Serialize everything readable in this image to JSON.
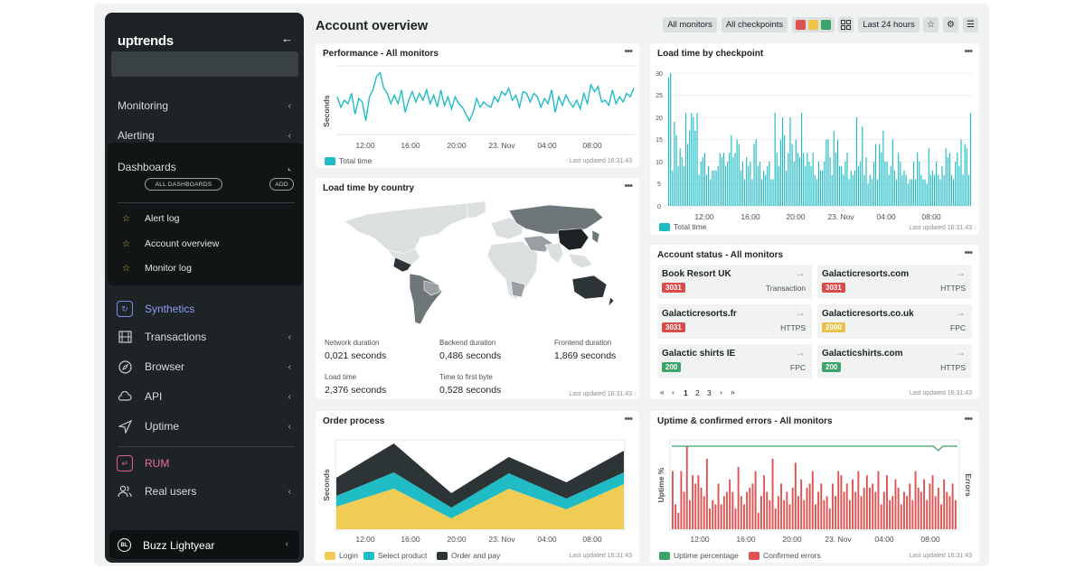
{
  "sidebar": {
    "logo": "uptrends",
    "collapse_icon": "arrow-left-icon",
    "items": [
      {
        "label": "Monitoring"
      },
      {
        "label": "Alerting"
      },
      {
        "label": "Dashboards"
      }
    ],
    "dashboards": {
      "all_label": "ALL DASHBOARDS",
      "add_label": "ADD",
      "links": [
        {
          "label": "Alert log"
        },
        {
          "label": "Account overview"
        },
        {
          "label": "Monitor log"
        }
      ]
    },
    "synthetics": {
      "label": "Synthetics",
      "color": "#7b8cf0"
    },
    "synth_items": [
      {
        "label": "Transactions",
        "icon": "film-icon"
      },
      {
        "label": "Browser",
        "icon": "compass-icon"
      },
      {
        "label": "API",
        "icon": "cloud-icon"
      },
      {
        "label": "Uptime",
        "icon": "send-icon"
      }
    ],
    "rum": {
      "label": "RUM",
      "color": "#e2608a"
    },
    "rum_items": [
      {
        "label": "Real users",
        "icon": "users-icon"
      }
    ],
    "user": {
      "initials": "BL",
      "name": "Buzz Lightyear"
    }
  },
  "header": {
    "title": "Account overview",
    "all_monitors": "All monitors",
    "all_checkpoints": "All checkpoints",
    "status_colors": [
      "#e05252",
      "#f0c34a",
      "#3aa566"
    ],
    "timeframe": "Last 24 hours"
  },
  "performance": {
    "title": "Performance - All monitors",
    "ylabel": "Seconds",
    "xticks": [
      "12:00",
      "16:00",
      "20:00",
      "23. Nov",
      "04:00",
      "08:00"
    ],
    "legend": "Total time",
    "updated": "Last updated 16:31:43"
  },
  "checkpoint": {
    "title": "Load time by checkpoint",
    "yticks": [
      "0",
      "5",
      "10",
      "15",
      "20",
      "25",
      "30"
    ],
    "xticks": [
      "12:00",
      "16:00",
      "20:00",
      "23. Nov",
      "04:00",
      "08:00"
    ],
    "legend": "Total time",
    "updated": "Last updated 16:31:43"
  },
  "country": {
    "title": "Load time by country",
    "metrics": [
      {
        "label": "Network duration",
        "value": "0,021 seconds"
      },
      {
        "label": "Backend duration",
        "value": "0,486 seconds"
      },
      {
        "label": "Frontend duration",
        "value": "1,869 seconds"
      },
      {
        "label": "Load time",
        "value": "2,376 seconds"
      },
      {
        "label": "Time to first byte",
        "value": "0,528 seconds"
      }
    ],
    "updated": "Last updated 16:31:43"
  },
  "status": {
    "title": "Account status - All monitors",
    "tiles": [
      {
        "name": "Book Resort UK",
        "code": "3031",
        "color": "#d94b4b",
        "type": "Transaction"
      },
      {
        "name": "Galacticresorts.com",
        "code": "3031",
        "color": "#d94b4b",
        "type": "HTTPS"
      },
      {
        "name": "Galacticresorts.fr",
        "code": "3031",
        "color": "#d94b4b",
        "type": "HTTPS"
      },
      {
        "name": "Galacticresorts.co.uk",
        "code": "2000",
        "color": "#e8c24a",
        "type": "FPC"
      },
      {
        "name": "Galactic shirts IE",
        "code": "200",
        "color": "#3aa566",
        "type": "FPC"
      },
      {
        "name": "Galacticshirts.com",
        "code": "200",
        "color": "#3aa566",
        "type": "HTTPS"
      }
    ],
    "pages": [
      "1",
      "2",
      "3"
    ],
    "updated": "Last updated 16:31:43"
  },
  "order": {
    "title": "Order process",
    "ylabel": "Seconds",
    "xticks": [
      "12:00",
      "16:00",
      "20:00",
      "23. Nov",
      "04:00",
      "08:00"
    ],
    "legend": [
      "Login",
      "Select product",
      "Order and pay"
    ],
    "colors": [
      "#f0cc55",
      "#1fbcc6",
      "#2d3436"
    ],
    "updated": "Last updated 16:31:43"
  },
  "uptime": {
    "title": "Uptime & confirmed errors - All monitors",
    "ylabel_left": "Uptime %",
    "ylabel_right": "Errors",
    "xticks": [
      "12:00",
      "16:00",
      "20:00",
      "23. Nov",
      "04:00",
      "08:00"
    ],
    "legend": [
      "Uptime percentage",
      "Confirmed errors"
    ],
    "colors": [
      "#3aa566",
      "#e05252"
    ],
    "updated": "Last updated 16:31:43"
  },
  "chart_data": [
    {
      "type": "line",
      "title": "Performance - All monitors",
      "ylabel": "Seconds",
      "series": [
        {
          "name": "Total time",
          "values": [
            2.2,
            1.6,
            2.0,
            1.8,
            2.4,
            1.2,
            2.1,
            1.9,
            0.8,
            2.2,
            2.6,
            3.4,
            3.6,
            2.7,
            2.4,
            1.8,
            2.3,
            1.8,
            2.6,
            1.3,
            2.0,
            2.5,
            1.9,
            2.4,
            2.0,
            2.6,
            1.8,
            2.3,
            1.6,
            2.6,
            1.7,
            2.2,
            1.5,
            2.2,
            1.8,
            1.6,
            1.2,
            0.8,
            1.3,
            2.1,
            1.6,
            1.9,
            1.7,
            1.6,
            2.2,
            1.9,
            2.5,
            2.3,
            2.7,
            2.0,
            2.3,
            1.6,
            2.5,
            2.4,
            1.9,
            2.4,
            2.2,
            1.6,
            2.1,
            1.8,
            2.6,
            1.3,
            2.2,
            1.7,
            2.3,
            1.9,
            1.6,
            2.0,
            1.5,
            2.4,
            1.8,
            2.9,
            2.5,
            2.8,
            1.9,
            2.0,
            1.7,
            2.6,
            1.8,
            2.2,
            1.9,
            2.4,
            2.2,
            2.7
          ]
        }
      ],
      "color": "#1fbcc6"
    },
    {
      "type": "bar",
      "title": "Load time by checkpoint",
      "ylim": [
        0,
        30
      ],
      "series": [
        {
          "name": "Total time",
          "values": [
            29,
            30,
            8,
            19,
            16,
            9,
            13,
            11,
            9,
            21,
            14,
            17,
            21,
            20,
            17,
            21,
            7,
            10,
            11,
            12,
            7,
            9,
            6,
            8,
            8,
            8,
            9,
            12,
            11,
            12,
            9,
            10,
            12,
            16,
            11,
            12,
            15,
            14,
            8,
            10,
            6,
            11,
            9,
            10,
            6,
            14,
            15,
            9,
            10,
            6,
            8,
            7,
            9,
            10,
            6,
            6,
            21,
            12,
            9,
            15,
            20,
            16,
            8,
            12,
            20,
            14,
            10,
            15,
            12,
            11,
            21,
            12,
            9,
            12,
            10,
            9,
            12,
            7,
            6,
            10,
            8,
            8,
            10,
            15,
            15,
            11,
            7,
            17,
            12,
            15,
            9,
            9,
            7,
            10,
            12,
            6,
            8,
            7,
            8,
            20,
            9,
            10,
            18,
            7,
            11,
            5,
            7,
            6,
            10,
            14,
            6,
            14,
            12,
            17,
            10,
            10,
            7,
            9,
            15,
            8,
            6,
            12,
            10,
            7,
            8,
            7,
            5,
            6,
            6,
            10,
            6,
            12,
            10,
            7,
            6,
            6,
            5,
            13,
            7,
            8,
            7,
            10,
            7,
            6,
            9,
            7,
            13,
            11,
            12,
            7,
            6,
            10,
            12,
            9,
            15,
            7,
            14,
            13,
            7,
            21
          ]
        }
      ],
      "color": "#1fbcc6"
    },
    {
      "type": "area",
      "title": "Order process",
      "ylabel": "Seconds",
      "categories": [
        "12:00",
        "16:00",
        "20:00",
        "23. Nov",
        "04:00",
        "08:00"
      ],
      "series": [
        {
          "name": "Login",
          "values": [
            0.25,
            0.45,
            0.12,
            0.45,
            0.22,
            0.5
          ]
        },
        {
          "name": "Select product",
          "values": [
            0.12,
            0.18,
            0.12,
            0.17,
            0.12,
            0.13
          ]
        },
        {
          "name": "Order and pay",
          "values": [
            0.2,
            0.32,
            0.16,
            0.18,
            0.18,
            0.24
          ]
        }
      ]
    },
    {
      "type": "bar",
      "title": "Uptime & confirmed errors - All monitors",
      "series": [
        {
          "name": "Uptime percentage",
          "values": [
            100,
            100,
            100,
            100,
            100,
            100,
            100,
            100,
            100,
            100,
            100,
            100,
            100,
            100,
            100,
            100,
            100,
            100,
            100,
            100,
            100,
            100,
            100,
            100,
            100,
            100,
            100,
            100,
            100,
            100,
            100,
            100,
            100,
            100,
            100,
            100,
            100,
            100,
            100,
            100,
            100,
            100,
            100,
            100,
            100,
            100,
            100,
            100,
            100,
            100,
            100,
            100,
            100,
            100,
            100,
            99.4,
            100,
            100,
            100,
            100
          ]
        },
        {
          "name": "Confirmed errors",
          "values": [
            14,
            6,
            4,
            14,
            9,
            20,
            7,
            13,
            11,
            13,
            10,
            8,
            17,
            5,
            7,
            6,
            11,
            6,
            8,
            9,
            12,
            9,
            5,
            15,
            8,
            6,
            9,
            10,
            11,
            14,
            4,
            8,
            13,
            9,
            7,
            17,
            5,
            8,
            11,
            7,
            9,
            6,
            10,
            16,
            8,
            12,
            7,
            10,
            11,
            14,
            6,
            9,
            11,
            7,
            8,
            5,
            11,
            8,
            14,
            13,
            9,
            11,
            7,
            12,
            9,
            14,
            8,
            10,
            13,
            10,
            11,
            9,
            14,
            6,
            9,
            13,
            7,
            8,
            12,
            10,
            6,
            9,
            8,
            11,
            7,
            14,
            10,
            9,
            12,
            7,
            11,
            13,
            8,
            10,
            6,
            12,
            9,
            8,
            11,
            7
          ]
        }
      ]
    }
  ]
}
